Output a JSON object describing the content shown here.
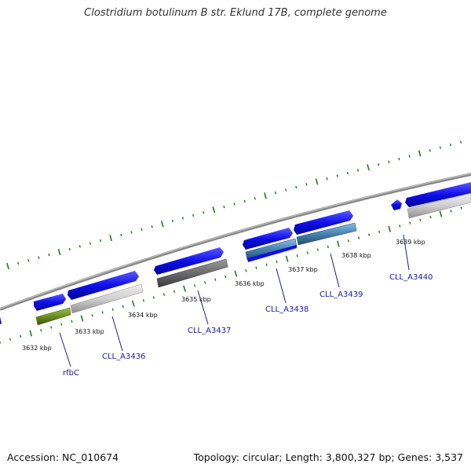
{
  "title": "Clostridium botulinum B str. Eklund 17B, complete genome",
  "footer": {
    "accession": "Accession: NC_010674",
    "topology": "Topology: circular; Length: 3,800,327 bp; Genes: 3,537"
  },
  "kbp_labels": [
    "3632 kbp",
    "3633 kbp",
    "3634 kbp",
    "3635 kbp",
    "3636 kbp",
    "3637 kbp",
    "3638 kbp",
    "3639 kbp"
  ],
  "gene_labels": [
    "rfbC",
    "CLL_A3436",
    "CLL_A3437",
    "CLL_A3438",
    "CLL_A3439",
    "CLL_A3440"
  ],
  "colors": {
    "cds_blue": "#1010e8",
    "backbone": "#8a8a8a",
    "tick_green": "#1f7a1f",
    "label_blue": "#1a1aa6",
    "rfbC_green": "#6b8e23",
    "steel_blue": "#4682b4"
  }
}
